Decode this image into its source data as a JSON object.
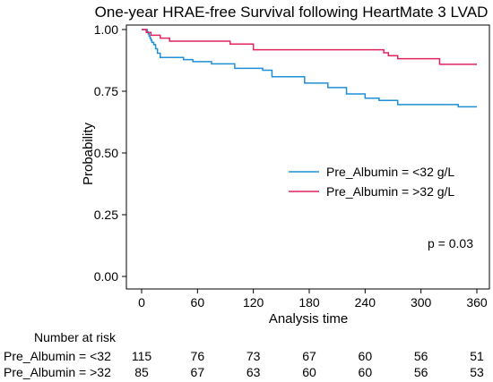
{
  "chart_data": {
    "type": "line",
    "title": "One-year HRAE-free Survival following HeartMate 3 LVAD",
    "xlabel": "Analysis time",
    "ylabel": "Probability",
    "xlim": [
      0,
      360
    ],
    "ylim": [
      0,
      1
    ],
    "x_ticks": [
      0,
      60,
      120,
      180,
      240,
      300,
      360
    ],
    "y_ticks": [
      "0.00",
      "0.25",
      "0.50",
      "0.75",
      "1.00"
    ],
    "grid": false,
    "legend_position": "right",
    "series": [
      {
        "name": "Pre_Albumin = <32 g/L",
        "color": "#1f8fd6",
        "x": [
          0,
          4,
          6,
          7,
          8,
          9,
          10,
          11,
          13,
          15,
          17,
          20,
          30,
          45,
          55,
          75,
          100,
          130,
          140,
          175,
          200,
          220,
          240,
          255,
          275,
          340,
          360
        ],
        "y": [
          1.0,
          1.0,
          0.991,
          0.983,
          0.974,
          0.965,
          0.957,
          0.948,
          0.939,
          0.922,
          0.904,
          0.887,
          0.887,
          0.878,
          0.87,
          0.861,
          0.843,
          0.835,
          0.809,
          0.783,
          0.765,
          0.739,
          0.722,
          0.713,
          0.696,
          0.687,
          0.687
        ]
      },
      {
        "name": "Pre_Albumin = >32 g/L",
        "color": "#e0245e",
        "x": [
          0,
          5,
          10,
          20,
          30,
          95,
          120,
          240,
          260,
          265,
          275,
          320,
          360
        ],
        "y": [
          1.0,
          0.988,
          0.977,
          0.965,
          0.953,
          0.941,
          0.918,
          0.918,
          0.906,
          0.894,
          0.882,
          0.859,
          0.859
        ]
      }
    ],
    "annotation": "p = 0.03"
  },
  "risk_table": {
    "header": "Number at risk",
    "rows": [
      {
        "label": "Pre_Albumin = <32",
        "counts": [
          "115",
          "76",
          "73",
          "67",
          "60",
          "56",
          "51"
        ]
      },
      {
        "label": "Pre_Albumin = >32",
        "counts": [
          "85",
          "67",
          "63",
          "60",
          "60",
          "56",
          "53"
        ]
      }
    ]
  }
}
